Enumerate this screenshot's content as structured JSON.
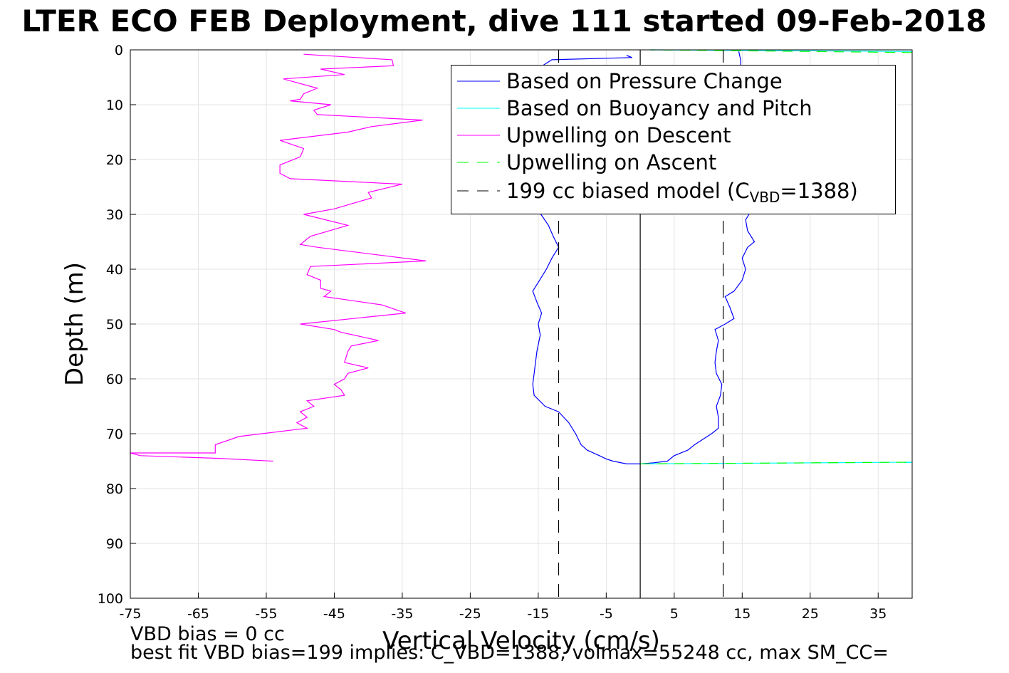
{
  "title": "LTER ECO FEB Deployment, dive 111 started 09-Feb-2018",
  "footer": {
    "line1": "VBD bias = 0 cc",
    "line2": "best fit VBD bias=199 implies: C_VBD=1388, volmax=55248 cc, max SM_CC="
  },
  "chart_data": {
    "type": "line",
    "xlabel": "Vertical Velocity (cm/s)",
    "ylabel": "Depth (m)",
    "xlim": [
      -75,
      40
    ],
    "ylim": [
      0,
      100
    ],
    "y_reversed": true,
    "grid": true,
    "xticks": [
      -75,
      -65,
      -55,
      -45,
      -35,
      -25,
      -15,
      -5,
      5,
      15,
      25,
      35
    ],
    "yticks": [
      0,
      10,
      20,
      30,
      40,
      50,
      60,
      70,
      80,
      90,
      100
    ],
    "legend_position": "top-right",
    "legend": [
      {
        "label": "Based on Pressure Change",
        "color": "#0000ff",
        "dash": "solid"
      },
      {
        "label": "Based on Buoyancy and Pitch",
        "color": "#00ffff",
        "dash": "solid"
      },
      {
        "label": "Upwelling on Descent",
        "color": "#ff00ff",
        "dash": "solid"
      },
      {
        "label": "Upwelling on Ascent",
        "color": "#00ff00",
        "dash": "dashed"
      },
      {
        "label_prefix": "199 cc biased model (C",
        "label_sub": "VBD",
        "label_suffix": "=1388)",
        "color": "#000000",
        "dash": "dashed"
      }
    ],
    "series": [
      {
        "name": "Based on Pressure Change",
        "color": "#0000ff",
        "segments": [
          [
            [
              -1.5,
              1.3
            ],
            [
              -2,
              1.0
            ],
            [
              -1.2,
              1.4
            ],
            [
              -13,
              1.8
            ],
            [
              -14.5,
              3
            ],
            [
              -14.8,
              5
            ],
            [
              -14,
              8
            ],
            [
              -15,
              12
            ],
            [
              -14.5,
              16
            ],
            [
              -15.5,
              20
            ],
            [
              -15,
              24
            ],
            [
              -14.8,
              27
            ],
            [
              -14.6,
              30
            ],
            [
              -13.5,
              32
            ],
            [
              -12.8,
              34
            ],
            [
              -12,
              36
            ],
            [
              -13,
              38
            ],
            [
              -13.8,
              40
            ],
            [
              -14.8,
              42
            ],
            [
              -15.8,
              44
            ],
            [
              -15.2,
              46
            ],
            [
              -14.5,
              48
            ],
            [
              -15,
              50
            ],
            [
              -14.7,
              52
            ],
            [
              -15.2,
              55
            ],
            [
              -15.5,
              58
            ],
            [
              -15.8,
              61
            ],
            [
              -15.6,
              63
            ],
            [
              -14,
              65
            ],
            [
              -12,
              66
            ],
            [
              -10.5,
              68
            ],
            [
              -9.5,
              70
            ],
            [
              -8.7,
              72
            ],
            [
              -7.8,
              73
            ],
            [
              -6,
              74
            ],
            [
              -5,
              74.6
            ],
            [
              -4,
              75
            ],
            [
              -2,
              75.5
            ],
            [
              0,
              75.5
            ]
          ],
          [
            [
              0,
              75.5
            ],
            [
              2,
              75.3
            ],
            [
              4,
              75
            ],
            [
              5,
              74
            ],
            [
              7,
              73
            ],
            [
              8,
              72
            ],
            [
              10.5,
              70
            ],
            [
              11.5,
              69
            ],
            [
              11.5,
              67
            ],
            [
              11.2,
              65
            ],
            [
              11.8,
              63
            ],
            [
              12,
              61
            ],
            [
              11.2,
              59
            ],
            [
              11,
              57
            ],
            [
              11.2,
              55
            ],
            [
              11.5,
              53
            ],
            [
              11,
              51
            ],
            [
              12.5,
              50
            ],
            [
              13.8,
              49
            ],
            [
              13.2,
              47
            ],
            [
              12.5,
              45
            ],
            [
              13.8,
              44
            ],
            [
              15,
              42
            ],
            [
              15.5,
              40
            ],
            [
              15,
              38
            ],
            [
              15.8,
              36
            ],
            [
              16.8,
              35
            ],
            [
              15.8,
              33
            ],
            [
              15.5,
              31
            ],
            [
              16.5,
              29
            ],
            [
              16,
              27
            ],
            [
              15.8,
              25
            ],
            [
              15.5,
              22
            ],
            [
              15,
              20
            ],
            [
              15.2,
              15
            ],
            [
              14.8,
              10
            ],
            [
              14.6,
              5
            ],
            [
              14.8,
              2
            ],
            [
              14.5,
              0.3
            ]
          ]
        ]
      },
      {
        "name": "Based on Buoyancy and Pitch",
        "color": "#00ffff",
        "segments": [
          [
            [
              0,
              75.5
            ],
            [
              40,
              75.2
            ]
          ],
          [
            [
              40,
              0.3
            ],
            [
              1.5,
              0
            ]
          ]
        ]
      },
      {
        "name": "Upwelling on Descent",
        "color": "#ff00ff",
        "segments": [
          [
            [
              -49.5,
              0.8
            ],
            [
              -36.5,
              1.8
            ],
            [
              -36.3,
              2.9
            ],
            [
              -47,
              3.5
            ],
            [
              -43.5,
              4.5
            ],
            [
              -52.5,
              5.3
            ],
            [
              -47.5,
              7
            ],
            [
              -49.5,
              8
            ],
            [
              -50,
              9
            ],
            [
              -51.5,
              9.3
            ],
            [
              -45.5,
              10
            ],
            [
              -48,
              11
            ],
            [
              -47.5,
              11.8
            ],
            [
              -32,
              12.8
            ],
            [
              -39.5,
              14
            ],
            [
              -43,
              15
            ],
            [
              -53,
              16.5
            ],
            [
              -49.5,
              18
            ],
            [
              -50,
              19.5
            ],
            [
              -53,
              21
            ],
            [
              -53,
              22.5
            ],
            [
              -51.5,
              23.5
            ],
            [
              -35,
              24.5
            ],
            [
              -40,
              26
            ],
            [
              -39.5,
              27
            ],
            [
              -45,
              29
            ],
            [
              -49.5,
              30
            ],
            [
              -43,
              32
            ],
            [
              -48.5,
              34
            ],
            [
              -50,
              35.5
            ],
            [
              -47.5,
              36
            ],
            [
              -31.5,
              38.5
            ],
            [
              -48.5,
              39.5
            ],
            [
              -49,
              41
            ],
            [
              -47,
              42
            ],
            [
              -47,
              43.5
            ],
            [
              -45.5,
              44
            ],
            [
              -46.5,
              45
            ],
            [
              -38,
              46.5
            ],
            [
              -34.5,
              48
            ],
            [
              -50,
              50
            ],
            [
              -45,
              51
            ],
            [
              -44,
              51.5
            ],
            [
              -38.5,
              53
            ],
            [
              -42.5,
              54
            ],
            [
              -43,
              55
            ],
            [
              -43.5,
              57
            ],
            [
              -40,
              58
            ],
            [
              -43,
              59
            ],
            [
              -43.5,
              60
            ],
            [
              -45,
              61
            ],
            [
              -44,
              62
            ],
            [
              -43.5,
              63
            ],
            [
              -49,
              64
            ],
            [
              -48,
              65
            ],
            [
              -50,
              66
            ],
            [
              -49,
              67
            ],
            [
              -50.5,
              68
            ],
            [
              -49,
              69
            ],
            [
              -59,
              70.5
            ],
            [
              -62.5,
              72
            ],
            [
              -62.5,
              73.5
            ],
            [
              -75,
              73.5
            ],
            [
              -73.5,
              74
            ],
            [
              -62,
              74.5
            ],
            [
              -54,
              75
            ]
          ]
        ]
      },
      {
        "name": "Upwelling on Ascent",
        "color": "#00ff00",
        "dashed": true,
        "segments": [
          [
            [
              0,
              75.5
            ],
            [
              40,
              75.2
            ]
          ],
          [
            [
              40,
              0.5
            ],
            [
              1.5,
              0
            ]
          ]
        ]
      },
      {
        "name": "199 cc biased model",
        "color": "#000000",
        "dashed": true,
        "segments": [
          [
            [
              -12,
              0
            ],
            [
              -12,
              100
            ]
          ],
          [
            [
              12.2,
              0
            ],
            [
              12.2,
              100
            ]
          ]
        ]
      },
      {
        "name": "zero line",
        "color": "#000000",
        "dashed": false,
        "segments": [
          [
            [
              0,
              0
            ],
            [
              0,
              100
            ]
          ]
        ]
      }
    ]
  }
}
